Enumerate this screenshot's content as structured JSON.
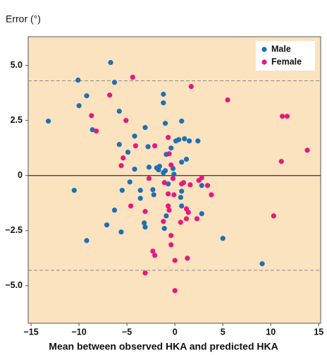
{
  "chart_data": {
    "type": "scatter",
    "title": "Error (°)",
    "x_label": "Mean between observed HKA and predicted HKA",
    "xlim": [
      -15.3,
      15.2
    ],
    "ylim": [
      -6.7,
      6.3
    ],
    "xticks": [
      {
        "value": -15,
        "label": "−15"
      },
      {
        "value": -10,
        "label": "−10"
      },
      {
        "value": -5,
        "label": "−5"
      },
      0,
      5,
      10,
      15
    ],
    "yticks": [
      {
        "value": -5,
        "label": "−5.0"
      },
      {
        "value": -2.5,
        "label": "−2.5"
      },
      0,
      {
        "value": 2.5,
        "label": "2.5"
      },
      {
        "value": 5,
        "label": "5.0"
      }
    ],
    "hlines": [
      {
        "value": 0,
        "style": "solid"
      },
      {
        "value": 4.3,
        "style": "dashed"
      },
      {
        "value": -4.3,
        "style": "dashed"
      }
    ],
    "background": "#fbe3bf",
    "legend": "top-right",
    "series": [
      {
        "name": "Male",
        "color": "#1f6fb5",
        "x": [
          -13.2,
          -10.5,
          -9.2,
          -9.2,
          -10.1,
          -10.0,
          -8.6,
          -6.7,
          -6.3,
          -5.8,
          -7.1,
          -6.3,
          -5.6,
          -5.5,
          -5.8,
          -4.9,
          -4.7,
          -4.2,
          -4.2,
          -3.1,
          -3.6,
          -3.6,
          -2.8,
          -2.7,
          -2.3,
          -2.2,
          -3.2,
          -3.1,
          -1.9,
          -1.7,
          -1.6,
          -1.2,
          -1.0,
          -1.2,
          -1.2,
          -1.0,
          -0.9,
          -0.7,
          -0.4,
          -0.2,
          -0.1,
          0.1,
          0.4,
          0.7,
          0.7,
          1.0,
          1.2,
          0.6,
          0.7,
          0.7,
          -0.9,
          -1.1,
          1.5,
          2.4,
          2.8,
          2.8,
          5.0,
          9.1
        ],
        "values": [
          2.47,
          -0.67,
          -2.95,
          3.62,
          4.33,
          3.17,
          2.08,
          5.13,
          4.23,
          2.92,
          -2.24,
          -1.57,
          -2.56,
          -0.67,
          1.41,
          1.06,
          -0.29,
          1.79,
          0.29,
          2.18,
          -0.67,
          -1.03,
          1.31,
          0.38,
          -0.64,
          -0.87,
          -2.15,
          -2.34,
          0.35,
          0.26,
          0.42,
          0.13,
          0.22,
          3.69,
          3.3,
          2.37,
          0.96,
          -0.38,
          1.25,
          0.32,
          0.06,
          1.57,
          1.63,
          2.47,
          0.61,
          1.67,
          0.74,
          -0.99,
          -0.71,
          -1.38,
          -1.83,
          -2.4,
          1.57,
          1.57,
          -0.45,
          -1.73,
          -2.85,
          -4.0
        ]
      },
      {
        "name": "Female",
        "color": "#e6197e",
        "x": [
          -4.4,
          -6.8,
          -8.7,
          -8.2,
          -5.1,
          -5.4,
          -5.6,
          -4.1,
          -4.6,
          -2.1,
          -2.7,
          -3.1,
          -2.3,
          -2.1,
          -3.1,
          1.7,
          -0.7,
          -0.6,
          -0.4,
          -0.2,
          -1.1,
          -0.7,
          -0.1,
          -0.6,
          -0.7,
          -1.2,
          -0.4,
          0.0,
          0.0,
          0.6,
          1.2,
          0.9,
          0.7,
          1.6,
          1.2,
          1.4,
          2.3,
          1.3,
          2.5,
          3.4,
          3.8,
          2.8,
          5.5,
          11.2,
          11.7,
          11.1,
          13.8,
          10.3,
          -0.4
        ],
        "values": [
          4.46,
          3.65,
          2.72,
          2.02,
          2.5,
          0.8,
          0.45,
          1.35,
          -1.38,
          1.35,
          -0.13,
          -1.63,
          -3.43,
          -3.62,
          -4.42,
          4.04,
          1.73,
          0.99,
          0.48,
          -0.13,
          -0.32,
          -0.83,
          -0.87,
          -1.57,
          -1.38,
          -2.08,
          -3.14,
          -3.85,
          -5.22,
          -2.12,
          -1.96,
          -0.32,
          -0.38,
          -0.42,
          -1.51,
          -1.67,
          -1.96,
          -3.75,
          -0.22,
          -0.45,
          -0.87,
          -0.1,
          3.43,
          2.69,
          2.69,
          0.64,
          1.15,
          -1.83,
          -2.72
        ]
      }
    ]
  }
}
